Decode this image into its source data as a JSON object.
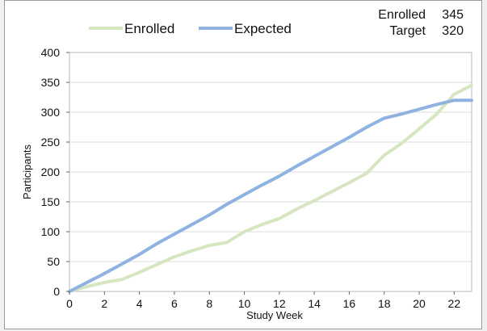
{
  "chart_data": {
    "type": "line",
    "xlabel": "Study Week",
    "ylabel": "Participants",
    "xlim": [
      0,
      23
    ],
    "ylim": [
      0,
      400
    ],
    "xticks": [
      0,
      2,
      4,
      6,
      8,
      10,
      12,
      14,
      16,
      18,
      20,
      22
    ],
    "yticks": [
      0,
      50,
      100,
      150,
      200,
      250,
      300,
      350,
      400
    ],
    "grid": "horizontal",
    "legend_position": "top-left",
    "series": [
      {
        "name": "Enrolled",
        "color": "#d5e6c1",
        "x": [
          0,
          1,
          2,
          3,
          4,
          5,
          6,
          7,
          8,
          9,
          10,
          11,
          12,
          13,
          14,
          15,
          16,
          17,
          18,
          19,
          20,
          21,
          22,
          23
        ],
        "y": [
          0,
          8,
          15,
          20,
          32,
          45,
          58,
          68,
          77,
          82,
          100,
          112,
          122,
          138,
          152,
          167,
          182,
          198,
          228,
          248,
          272,
          297,
          330,
          345
        ]
      },
      {
        "name": "Expected",
        "color": "#8fb3e0",
        "x": [
          0,
          1,
          2,
          3,
          4,
          5,
          6,
          7,
          8,
          9,
          10,
          11,
          12,
          13,
          14,
          15,
          16,
          17,
          18,
          19,
          20,
          21,
          22,
          23
        ],
        "y": [
          0,
          15,
          30,
          46,
          62,
          80,
          96,
          112,
          128,
          146,
          162,
          178,
          193,
          210,
          226,
          242,
          258,
          275,
          290,
          297,
          305,
          313,
          320,
          320
        ]
      }
    ]
  },
  "summary": {
    "enrolled_label": "Enrolled",
    "enrolled_value": "345",
    "target_label": "Target",
    "target_value": "320"
  }
}
